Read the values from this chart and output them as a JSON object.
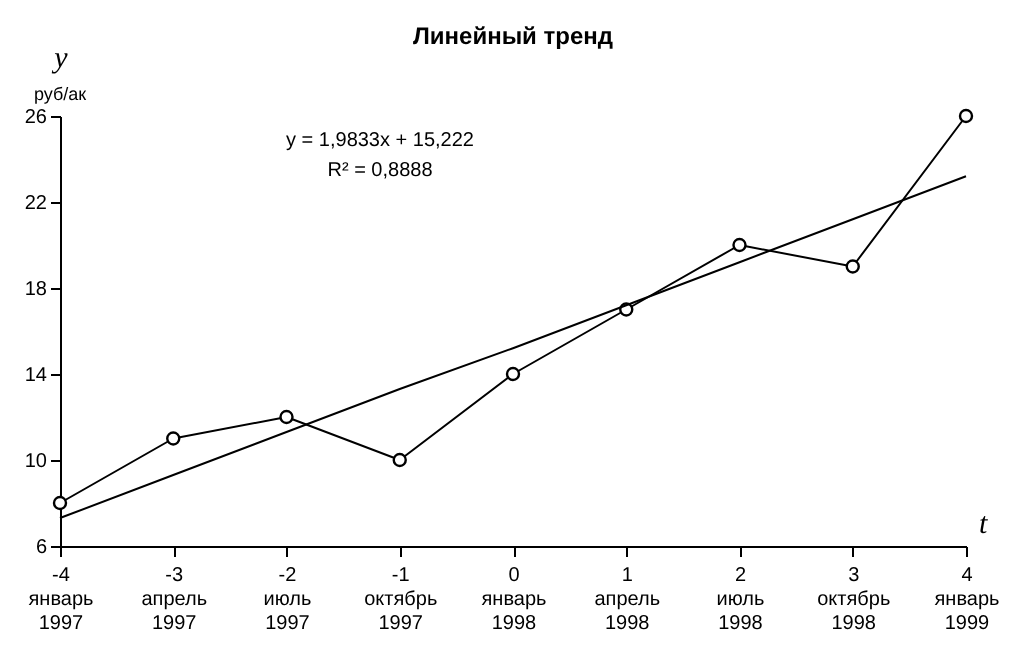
{
  "chart_data": {
    "type": "line",
    "title": "Линейный тренд",
    "ylabel": "y",
    "xlabel": "t",
    "annotations": [
      "y = 1,9833x + 15,222",
      "R² = 0,8888",
      "руб/ак"
    ],
    "categories": [
      "-4 январь 1997",
      "-3 апрель 1997",
      "-2 июль 1997",
      "-1 октябрь 1997",
      "0 январь 1998",
      "1 апрель 1998",
      "2 июль 1998",
      "3 октябрь 1998",
      "4 январь 1999"
    ],
    "series": [
      {
        "color": "#000000",
        "values": [
          8,
          11,
          12,
          10,
          14,
          17,
          20,
          19,
          26
        ],
        "marker": "circle"
      },
      {
        "type": "line",
        "color": "#000000",
        "values": [
          7.3,
          9.3,
          11.3,
          13.3,
          15.2,
          17.2,
          19.2,
          21.2,
          23.2
        ],
        "marker": "none"
      }
    ],
    "ylim": [
      6,
      26
    ],
    "yticks": [
      6,
      10,
      14,
      18,
      22,
      26
    ],
    "grid": false,
    "line_style": "solid"
  }
}
